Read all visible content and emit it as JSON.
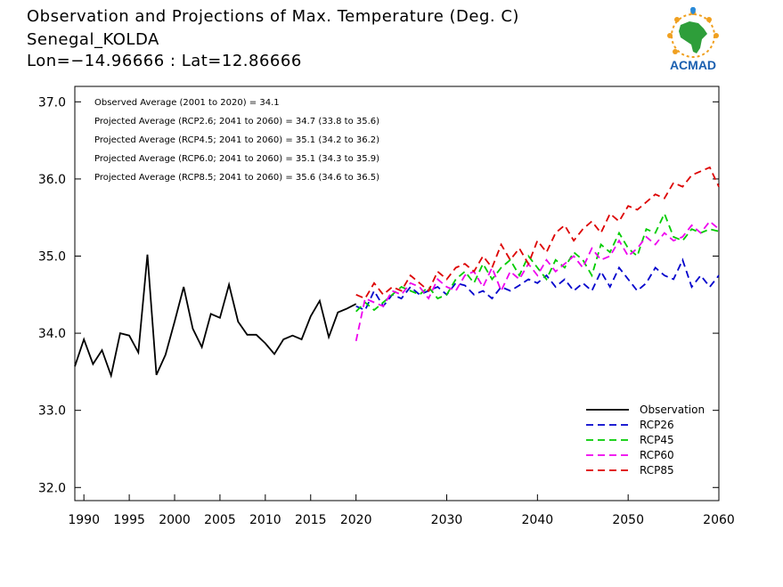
{
  "title": {
    "line1": "Observation and Projections of Max. Temperature (Deg. C)",
    "line2": "Senegal_KOLDA",
    "line3": "Lon=−14.96666 : Lat=12.86666"
  },
  "logo": {
    "text": "ACMAD",
    "icon": "africa-map-logo"
  },
  "colors": {
    "observation": "#000000",
    "rcp26": "#0000cc",
    "rcp45": "#00cc00",
    "rcp60": "#ee00ee",
    "rcp85": "#dd0000"
  },
  "chart_data": {
    "type": "line",
    "xlim": [
      1989,
      2060
    ],
    "ylim": [
      31.83,
      37.2
    ],
    "x_ticks": [
      1990,
      1995,
      2000,
      2005,
      2010,
      2015,
      2020,
      2030,
      2040,
      2050,
      2060
    ],
    "y_ticks": [
      32.0,
      33.0,
      34.0,
      35.0,
      36.0,
      37.0
    ],
    "y_tick_labels": [
      "32.0",
      "33.0",
      "34.0",
      "35.0",
      "36.0",
      "37.0"
    ],
    "annotations": [
      "Observed Average (2001 to 2020) = 34.1",
      "Projected Average (RCP2.6; 2041 to 2060) = 34.7 (33.8 to 35.6)",
      "Projected Average (RCP4.5; 2041 to 2060) = 35.1 (34.2 to 36.2)",
      "Projected Average (RCP6.0; 2041 to 2060) = 35.1 (34.3 to 35.9)",
      "Projected Average (RCP8.5; 2041 to 2060) = 35.6 (34.6 to 36.5)"
    ],
    "legend": [
      "Observation",
      "RCP26",
      "RCP45",
      "RCP60",
      "RCP85"
    ],
    "legend_position": "bottom-right",
    "observation": {
      "name": "Observation",
      "x": [
        1989,
        1990,
        1991,
        1992,
        1993,
        1994,
        1995,
        1996,
        1997,
        1998,
        1999,
        2000,
        2001,
        2002,
        2003,
        2004,
        2005,
        2006,
        2007,
        2008,
        2009,
        2010,
        2011,
        2012,
        2013,
        2014,
        2015,
        2016,
        2017,
        2018,
        2019,
        2020
      ],
      "values": [
        33.57,
        33.92,
        33.6,
        33.78,
        33.45,
        34.0,
        33.97,
        33.75,
        35.02,
        33.46,
        33.72,
        34.15,
        34.6,
        34.06,
        33.82,
        34.25,
        34.2,
        34.63,
        34.15,
        33.98,
        33.98,
        33.87,
        33.73,
        33.92,
        33.97,
        33.92,
        34.22,
        34.42,
        33.95,
        34.27,
        34.32,
        34.38
      ]
    },
    "projection_years": [
      2020,
      2021,
      2022,
      2023,
      2024,
      2025,
      2026,
      2027,
      2028,
      2029,
      2030,
      2031,
      2032,
      2033,
      2034,
      2035,
      2036,
      2037,
      2038,
      2039,
      2040,
      2041,
      2042,
      2043,
      2044,
      2045,
      2046,
      2047,
      2048,
      2049,
      2050,
      2051,
      2052,
      2053,
      2054,
      2055,
      2056,
      2057,
      2058,
      2059,
      2060
    ],
    "series": [
      {
        "name": "RCP26",
        "values": [
          34.35,
          34.3,
          34.55,
          34.35,
          34.5,
          34.45,
          34.6,
          34.5,
          34.55,
          34.6,
          34.5,
          34.65,
          34.62,
          34.5,
          34.55,
          34.45,
          34.6,
          34.55,
          34.62,
          34.7,
          34.65,
          34.75,
          34.6,
          34.7,
          34.55,
          34.65,
          34.55,
          34.8,
          34.6,
          34.85,
          34.7,
          34.55,
          34.65,
          34.85,
          34.75,
          34.7,
          34.95,
          34.6,
          34.75,
          34.6,
          34.75
        ]
      },
      {
        "name": "RCP45",
        "values": [
          34.28,
          34.4,
          34.3,
          34.4,
          34.5,
          34.6,
          34.55,
          34.5,
          34.6,
          34.45,
          34.5,
          34.7,
          34.8,
          34.65,
          34.9,
          34.7,
          34.85,
          34.95,
          34.75,
          35.0,
          34.85,
          34.7,
          34.95,
          34.85,
          35.05,
          34.95,
          34.75,
          35.15,
          35.05,
          35.3,
          35.1,
          35.0,
          35.35,
          35.3,
          35.55,
          35.25,
          35.2,
          35.35,
          35.3,
          35.35,
          35.32
        ]
      },
      {
        "name": "RCP60",
        "values": [
          33.9,
          34.45,
          34.4,
          34.35,
          34.55,
          34.5,
          34.65,
          34.6,
          34.45,
          34.7,
          34.6,
          34.55,
          34.75,
          34.8,
          34.6,
          34.85,
          34.55,
          34.8,
          34.7,
          34.9,
          34.75,
          34.95,
          34.8,
          34.9,
          35.0,
          34.85,
          35.1,
          34.95,
          35.0,
          35.2,
          35.0,
          35.1,
          35.25,
          35.15,
          35.3,
          35.2,
          35.25,
          35.4,
          35.3,
          35.45,
          35.35
        ]
      },
      {
        "name": "RCP85",
        "values": [
          34.5,
          34.45,
          34.65,
          34.5,
          34.6,
          34.55,
          34.75,
          34.65,
          34.55,
          34.8,
          34.7,
          34.85,
          34.9,
          34.8,
          35.0,
          34.85,
          35.15,
          34.95,
          35.1,
          34.9,
          35.2,
          35.05,
          35.3,
          35.4,
          35.2,
          35.35,
          35.45,
          35.3,
          35.55,
          35.45,
          35.65,
          35.6,
          35.7,
          35.8,
          35.75,
          35.95,
          35.9,
          36.05,
          36.1,
          36.15,
          35.9
        ]
      }
    ]
  }
}
